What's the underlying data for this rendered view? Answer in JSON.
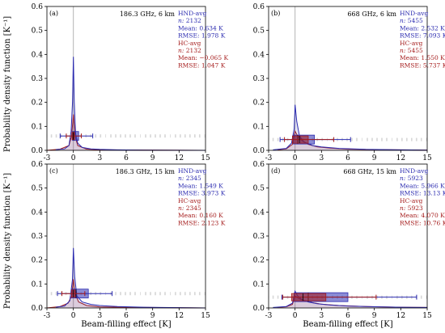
{
  "figure": {
    "ylabel": "Probability density function [K⁻¹]",
    "xlabel": "Beam-filling effect [K]"
  },
  "chart_data": [
    {
      "type": "histogram+boxplot",
      "panel": "(a)",
      "title": "186.3 GHz, 6 km",
      "xlim": [
        -3,
        15
      ],
      "ylim": [
        0,
        0.6
      ],
      "xticks": [
        "-3",
        "0",
        "3",
        "6",
        "9",
        "12",
        "15"
      ],
      "yticks": [
        "0.0",
        "0.1",
        "0.2",
        "0.3",
        "0.4",
        "0.5",
        "0.6"
      ],
      "series": [
        {
          "name": "HND-avg",
          "color": "#2b2bb0",
          "n_label": "n:",
          "n": "2132",
          "mean": "Mean: 0.634 K",
          "rmse": "RMSE: 1.978 K",
          "hist": [
            [
              -2.0,
              0.003
            ],
            [
              -1.0,
              0.006
            ],
            [
              -0.5,
              0.02
            ],
            [
              -0.25,
              0.08
            ],
            [
              -0.1,
              0.2
            ],
            [
              0.0,
              0.39
            ],
            [
              0.1,
              0.2
            ],
            [
              0.25,
              0.07
            ],
            [
              0.5,
              0.03
            ],
            [
              1.0,
              0.012
            ],
            [
              2.0,
              0.006
            ],
            [
              3.0,
              0.004
            ],
            [
              5.0,
              0.002
            ],
            [
              8.0,
              0.001
            ],
            [
              15.0,
              0.0
            ]
          ],
          "box": {
            "whisker_low": -1.5,
            "q1": -0.1,
            "median": 0.05,
            "q3": 0.6,
            "whisker_high": 2.2,
            "level": 0.06
          }
        },
        {
          "name": "HC-avg",
          "color": "#a51c1c",
          "n_label": "n:",
          "n": "2132",
          "mean": "Mean: −0.065 K",
          "rmse": "RMSE: 1.047 K",
          "hist": [
            [
              -3.0,
              0.0
            ],
            [
              -1.5,
              0.005
            ],
            [
              -0.5,
              0.02
            ],
            [
              -0.2,
              0.06
            ],
            [
              0.0,
              0.15
            ],
            [
              0.2,
              0.06
            ],
            [
              0.5,
              0.02
            ],
            [
              1.5,
              0.005
            ],
            [
              3.0,
              0.002
            ],
            [
              15.0,
              0.0
            ]
          ],
          "box": {
            "whisker_low": -0.8,
            "q1": -0.15,
            "median": -0.02,
            "q3": 0.12,
            "whisker_high": 0.9,
            "level": 0.06
          }
        }
      ]
    },
    {
      "type": "histogram+boxplot",
      "panel": "(b)",
      "title": "668 GHz, 6 km",
      "xlim": [
        -3,
        15
      ],
      "ylim": [
        0,
        0.6
      ],
      "xticks": [
        "-3",
        "0",
        "3",
        "6",
        "9",
        "12",
        "15"
      ],
      "yticks": [
        "0.0",
        "0.1",
        "0.2",
        "0.3",
        "0.4",
        "0.5",
        "0.6"
      ],
      "series": [
        {
          "name": "HND-avg",
          "color": "#2b2bb0",
          "n_label": "n:",
          "n": "5455",
          "mean": "Mean: 2.532 K",
          "rmse": "RMSE: 7.093 K",
          "hist": [
            [
              -2.5,
              0.002
            ],
            [
              -1.0,
              0.008
            ],
            [
              -0.4,
              0.03
            ],
            [
              -0.1,
              0.09
            ],
            [
              0.0,
              0.19
            ],
            [
              0.2,
              0.12
            ],
            [
              0.5,
              0.06
            ],
            [
              1.0,
              0.035
            ],
            [
              2.0,
              0.02
            ],
            [
              3.0,
              0.014
            ],
            [
              5.0,
              0.008
            ],
            [
              8.0,
              0.004
            ],
            [
              12.0,
              0.002
            ],
            [
              15.0,
              0.001
            ]
          ],
          "box": {
            "whisker_low": -1.7,
            "q1": -0.2,
            "median": 0.3,
            "q3": 2.2,
            "whisker_high": 6.3,
            "level": 0.045
          }
        },
        {
          "name": "HC-avg",
          "color": "#a51c1c",
          "n_label": "n:",
          "n": "5455",
          "mean": "Mean: 1.550 K",
          "rmse": "RMSE: 5.737 K",
          "hist": [
            [
              -2.0,
              0.002
            ],
            [
              -1.0,
              0.006
            ],
            [
              -0.3,
              0.025
            ],
            [
              0.0,
              0.08
            ],
            [
              0.3,
              0.06
            ],
            [
              0.8,
              0.04
            ],
            [
              1.5,
              0.025
            ],
            [
              2.5,
              0.015
            ],
            [
              4.0,
              0.009
            ],
            [
              6.0,
              0.005
            ],
            [
              9.0,
              0.003
            ],
            [
              15.0,
              0.001
            ]
          ],
          "box": {
            "whisker_low": -1.2,
            "q1": -0.3,
            "median": 0.5,
            "q3": 1.5,
            "whisker_high": 4.4,
            "level": 0.045
          }
        }
      ]
    },
    {
      "type": "histogram+boxplot",
      "panel": "(c)",
      "title": "186.3 GHz, 15 km",
      "xlim": [
        -3,
        15
      ],
      "ylim": [
        0,
        0.6
      ],
      "xticks": [
        "-3",
        "0",
        "3",
        "6",
        "9",
        "12",
        "15"
      ],
      "yticks": [
        "0.0",
        "0.1",
        "0.2",
        "0.3",
        "0.4",
        "0.5",
        "0.6"
      ],
      "series": [
        {
          "name": "HND-avg",
          "color": "#2b2bb0",
          "n_label": "n:",
          "n": "2345",
          "mean": "Mean: 1.549 K",
          "rmse": "RMSE: 3.973 K",
          "hist": [
            [
              -2.0,
              0.003
            ],
            [
              -1.0,
              0.008
            ],
            [
              -0.4,
              0.03
            ],
            [
              -0.1,
              0.12
            ],
            [
              0.0,
              0.25
            ],
            [
              0.15,
              0.13
            ],
            [
              0.4,
              0.05
            ],
            [
              1.0,
              0.025
            ],
            [
              2.0,
              0.015
            ],
            [
              3.0,
              0.01
            ],
            [
              5.0,
              0.006
            ],
            [
              8.0,
              0.003
            ],
            [
              15.0,
              0.0
            ]
          ],
          "box": {
            "whisker_low": -1.8,
            "q1": -0.2,
            "median": 0.3,
            "q3": 1.7,
            "whisker_high": 4.4,
            "level": 0.06
          }
        },
        {
          "name": "HC-avg",
          "color": "#a51c1c",
          "n_label": "n:",
          "n": "2345",
          "mean": "Mean: 0.160 K",
          "rmse": "RMSE: 2.123 K",
          "hist": [
            [
              -3.0,
              0.0
            ],
            [
              -1.5,
              0.006
            ],
            [
              -0.6,
              0.02
            ],
            [
              -0.2,
              0.05
            ],
            [
              0.0,
              0.12
            ],
            [
              0.2,
              0.06
            ],
            [
              0.6,
              0.025
            ],
            [
              1.5,
              0.01
            ],
            [
              3.0,
              0.004
            ],
            [
              15.0,
              0.0
            ]
          ],
          "box": {
            "whisker_low": -1.3,
            "q1": -0.2,
            "median": 0.0,
            "q3": 0.2,
            "whisker_high": 1.3,
            "level": 0.06
          }
        }
      ]
    },
    {
      "type": "histogram+boxplot",
      "panel": "(d)",
      "title": "668 GHz, 15 km",
      "xlim": [
        -3,
        15
      ],
      "ylim": [
        0,
        0.6
      ],
      "xticks": [
        "-3",
        "0",
        "3",
        "6",
        "9",
        "12",
        "15"
      ],
      "yticks": [
        "0.0",
        "0.1",
        "0.2",
        "0.3",
        "0.4",
        "0.5",
        "0.6"
      ],
      "series": [
        {
          "name": "HND-avg",
          "color": "#2b2bb0",
          "n_label": "n:",
          "n": "5923",
          "mean": "Mean: 5.966 K",
          "rmse": "RMSE: 13.13 K",
          "hist": [
            [
              -2.5,
              0.002
            ],
            [
              -1.0,
              0.006
            ],
            [
              -0.3,
              0.02
            ],
            [
              0.0,
              0.07
            ],
            [
              0.3,
              0.05
            ],
            [
              0.8,
              0.035
            ],
            [
              1.5,
              0.025
            ],
            [
              2.5,
              0.018
            ],
            [
              4.0,
              0.012
            ],
            [
              6.0,
              0.008
            ],
            [
              9.0,
              0.005
            ],
            [
              12.0,
              0.003
            ],
            [
              15.0,
              0.002
            ]
          ],
          "box": {
            "whisker_low": -1.5,
            "q1": -0.1,
            "median": 1.5,
            "q3": 6.0,
            "whisker_high": 13.8,
            "level": 0.045
          }
        },
        {
          "name": "HC-avg",
          "color": "#a51c1c",
          "n_label": "n:",
          "n": "5923",
          "mean": "Mean: 4.070 K",
          "rmse": "RMSE: 10.76 K",
          "hist": [
            [
              -2.0,
              0.002
            ],
            [
              -1.0,
              0.005
            ],
            [
              -0.3,
              0.015
            ],
            [
              0.0,
              0.05
            ],
            [
              0.4,
              0.04
            ],
            [
              1.0,
              0.03
            ],
            [
              2.0,
              0.022
            ],
            [
              3.0,
              0.016
            ],
            [
              5.0,
              0.01
            ],
            [
              8.0,
              0.006
            ],
            [
              12.0,
              0.003
            ],
            [
              15.0,
              0.002
            ]
          ],
          "box": {
            "whisker_low": -1.4,
            "q1": -0.4,
            "median": 0.9,
            "q3": 3.5,
            "whisker_high": 9.2,
            "level": 0.045
          }
        }
      ]
    }
  ]
}
